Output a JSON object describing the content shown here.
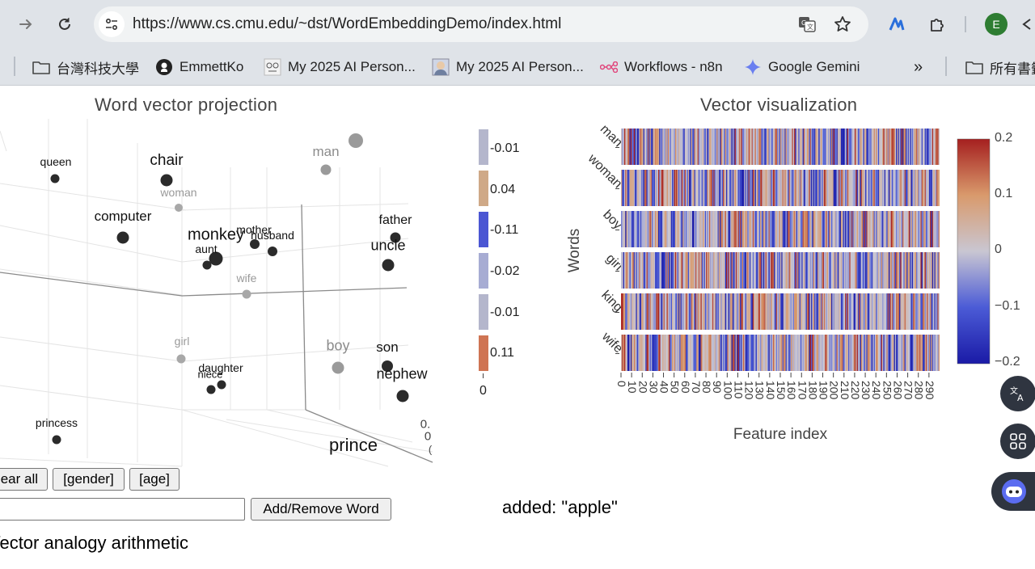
{
  "browser": {
    "url": "https://www.cs.cmu.edu/~dst/WordEmbeddingDemo/index.html",
    "profile_initial": "E",
    "icons": [
      "forward-icon",
      "reload-icon",
      "site-info-icon",
      "translate-icon",
      "star-icon",
      "n8n-extension-icon",
      "extensions-puzzle-icon",
      "profile-avatar"
    ]
  },
  "bookmarks": [
    {
      "label": "台灣科技大學",
      "icon": "folder-icon"
    },
    {
      "label": "EmmettKo",
      "icon": "github-icon"
    },
    {
      "label": "My 2025 AI Person...",
      "icon": "avatar-icon"
    },
    {
      "label": "My 2025 AI Person...",
      "icon": "avatar-icon"
    },
    {
      "label": "Workflows - n8n",
      "icon": "n8n-icon"
    },
    {
      "label": "Google Gemini",
      "icon": "gemini-icon"
    },
    {
      "label": "»",
      "icon": "more-bookmarks"
    },
    {
      "label": "所有書籤",
      "icon": "folder-icon"
    }
  ],
  "projection": {
    "title": "Word vector projection",
    "words": [
      {
        "text": "queen",
        "tone": "dark"
      },
      {
        "text": "chair",
        "tone": "dark"
      },
      {
        "text": "man",
        "tone": "gray"
      },
      {
        "text": "woman",
        "tone": "gray"
      },
      {
        "text": "computer",
        "tone": "dark"
      },
      {
        "text": "mother",
        "tone": "dark"
      },
      {
        "text": "monkey",
        "tone": "dark"
      },
      {
        "text": "husband",
        "tone": "dark"
      },
      {
        "text": "aunt",
        "tone": "dark"
      },
      {
        "text": "father",
        "tone": "dark"
      },
      {
        "text": "uncle",
        "tone": "dark"
      },
      {
        "text": "wife",
        "tone": "gray"
      },
      {
        "text": "girl",
        "tone": "gray"
      },
      {
        "text": "boy",
        "tone": "gray"
      },
      {
        "text": "son",
        "tone": "dark"
      },
      {
        "text": "daughter",
        "tone": "dark"
      },
      {
        "text": "niece",
        "tone": "dark"
      },
      {
        "text": "nephew",
        "tone": "dark"
      },
      {
        "text": "princess",
        "tone": "dark"
      },
      {
        "text": "prince",
        "tone": "dark"
      }
    ],
    "axis_fragments": [
      "0.",
      "0",
      "("
    ]
  },
  "component_legend": {
    "values": [
      "-0.01",
      "0.04",
      "-0.11",
      "-0.02",
      "-0.01",
      "0.11"
    ],
    "colors": [
      "#b4b6cc",
      "#cfa987",
      "#4b56d3",
      "#a7acd3",
      "#b4b6cc",
      "#cf7453"
    ],
    "zero_label": "0"
  },
  "vector_viz": {
    "title": "Vector visualization",
    "ylabel": "Words",
    "xlabel": "Feature index",
    "rows": [
      "man",
      "woman",
      "boy",
      "girl",
      "king",
      "wife"
    ],
    "x_ticks": [
      "0",
      "10",
      "20",
      "30",
      "40",
      "50",
      "60",
      "70",
      "80",
      "90",
      "100",
      "110",
      "120",
      "130",
      "140",
      "150",
      "160",
      "170",
      "180",
      "190",
      "200",
      "210",
      "220",
      "230",
      "240",
      "250",
      "260",
      "270",
      "280",
      "290"
    ],
    "colorbar": {
      "ticks": [
        "0.2",
        "0.1",
        "0",
        "−0.1",
        "−0.2"
      ],
      "range": [
        -0.2,
        0.2
      ],
      "colors": [
        "#1a1aa6",
        "#4b5bd6",
        "#b9bccf",
        "#d99a6c",
        "#a51f1f"
      ]
    }
  },
  "controls": {
    "clear_all": "Clear all",
    "gender": "[gender]",
    "age": "[age]",
    "add_remove": "Add/Remove Word",
    "input_value": "",
    "status": "added: \"apple\""
  },
  "analogy": {
    "title": "Vector analogy arithmetic"
  }
}
